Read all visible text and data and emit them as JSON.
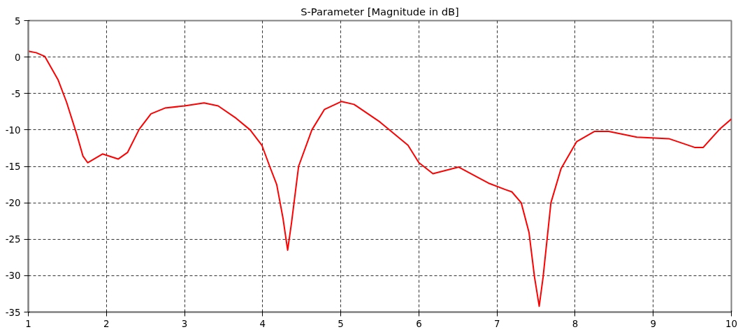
{
  "chart_data": {
    "type": "line",
    "title": "S-Parameter [Magnitude in dB]",
    "xlim": [
      1,
      10
    ],
    "ylim": [
      -35,
      5
    ],
    "xticks": [
      1,
      2,
      3,
      4,
      5,
      6,
      7,
      8,
      9,
      10
    ],
    "yticks": [
      -35,
      -30,
      -25,
      -20,
      -15,
      -10,
      -5,
      0,
      5
    ],
    "grid": true,
    "marker": "none",
    "line_style": "solid",
    "series": [
      {
        "color": "#ff0000",
        "x": [
          1.0,
          1.1,
          1.21,
          1.38,
          1.49,
          1.62,
          1.7,
          1.76,
          1.95,
          2.15,
          2.27,
          2.42,
          2.57,
          2.75,
          3.0,
          3.25,
          3.43,
          3.66,
          3.84,
          3.99,
          4.09,
          4.18,
          4.26,
          4.32,
          4.37,
          4.46,
          4.63,
          4.79,
          5.01,
          5.17,
          5.5,
          5.86,
          6.0,
          6.18,
          6.51,
          6.89,
          7.11,
          7.19,
          7.31,
          7.41,
          7.48,
          7.54,
          7.59,
          7.69,
          7.82,
          8.02,
          8.25,
          8.43,
          8.79,
          9.2,
          9.53,
          9.64,
          9.85,
          10.0
        ],
        "values": [
          0.8,
          0.6,
          0.1,
          -3.1,
          -6.2,
          -10.6,
          -13.6,
          -14.5,
          -13.3,
          -14.0,
          -13.1,
          -9.9,
          -7.8,
          -7.0,
          -6.7,
          -6.3,
          -6.7,
          -8.4,
          -10.0,
          -12.1,
          -15.0,
          -17.5,
          -22.1,
          -26.5,
          -22.7,
          -15.0,
          -10.0,
          -7.2,
          -6.1,
          -6.5,
          -8.9,
          -12.1,
          -14.5,
          -16.0,
          -15.1,
          -17.3,
          -18.2,
          -18.5,
          -20.0,
          -24.1,
          -30.2,
          -34.2,
          -30.2,
          -20.0,
          -15.3,
          -11.6,
          -10.2,
          -10.2,
          -11.0,
          -11.2,
          -12.4,
          -12.4,
          -9.9,
          -8.5
        ]
      }
    ]
  }
}
